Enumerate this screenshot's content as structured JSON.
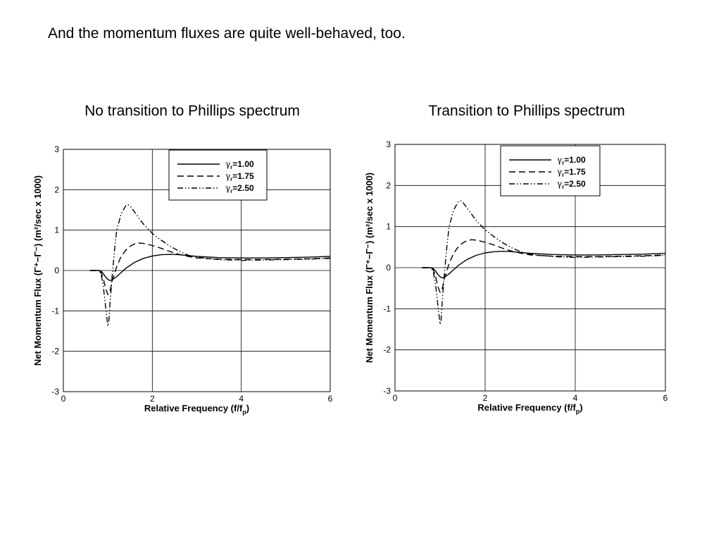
{
  "slide": {
    "heading": "And the momentum fluxes are quite well-behaved, too."
  },
  "chart_data": [
    {
      "type": "line",
      "title": "No transition to Phillips spectrum",
      "xlabel": "Relative Frequency (f/f",
      "xlabel_sub": "p",
      "xlabel_end": ")",
      "ylabel": "Net Momentum Flux  (Γ⁺−Γ⁻)  (m²/sec  x 1000)",
      "xlim": [
        0,
        6
      ],
      "ylim": [
        -3,
        3
      ],
      "xticks": [
        0,
        2,
        4,
        6
      ],
      "yticks": [
        -3,
        -2,
        -1,
        0,
        1,
        2,
        3
      ],
      "grid": true,
      "legend_position": "top-center",
      "series": [
        {
          "name": "γr=1.00",
          "legend_text": "=1.00",
          "dash": "solid",
          "points": [
            [
              0.6,
              0
            ],
            [
              0.8,
              0
            ],
            [
              0.85,
              -0.02
            ],
            [
              0.9,
              -0.08
            ],
            [
              0.95,
              -0.16
            ],
            [
              1.0,
              -0.22
            ],
            [
              1.05,
              -0.25
            ],
            [
              1.1,
              -0.23
            ],
            [
              1.2,
              -0.15
            ],
            [
              1.3,
              -0.05
            ],
            [
              1.4,
              0.05
            ],
            [
              1.6,
              0.2
            ],
            [
              1.8,
              0.3
            ],
            [
              2.0,
              0.36
            ],
            [
              2.2,
              0.39
            ],
            [
              2.4,
              0.4
            ],
            [
              2.6,
              0.39
            ],
            [
              2.8,
              0.37
            ],
            [
              3.0,
              0.35
            ],
            [
              3.5,
              0.32
            ],
            [
              4.0,
              0.31
            ],
            [
              4.5,
              0.31
            ],
            [
              5.0,
              0.32
            ],
            [
              5.5,
              0.33
            ],
            [
              6.0,
              0.35
            ]
          ]
        },
        {
          "name": "γr=1.75",
          "legend_text": "=1.75",
          "dash": "dashed",
          "points": [
            [
              0.6,
              0
            ],
            [
              0.8,
              0
            ],
            [
              0.85,
              -0.05
            ],
            [
              0.9,
              -0.2
            ],
            [
              0.95,
              -0.45
            ],
            [
              1.0,
              -0.6
            ],
            [
              1.05,
              -0.5
            ],
            [
              1.1,
              -0.25
            ],
            [
              1.2,
              0.1
            ],
            [
              1.3,
              0.35
            ],
            [
              1.4,
              0.5
            ],
            [
              1.5,
              0.6
            ],
            [
              1.6,
              0.66
            ],
            [
              1.7,
              0.68
            ],
            [
              1.8,
              0.67
            ],
            [
              2.0,
              0.62
            ],
            [
              2.2,
              0.55
            ],
            [
              2.4,
              0.47
            ],
            [
              2.6,
              0.4
            ],
            [
              2.8,
              0.35
            ],
            [
              3.0,
              0.31
            ],
            [
              3.5,
              0.28
            ],
            [
              4.0,
              0.27
            ],
            [
              4.5,
              0.27
            ],
            [
              5.0,
              0.28
            ],
            [
              5.5,
              0.29
            ],
            [
              6.0,
              0.31
            ]
          ]
        },
        {
          "name": "γr=2.50",
          "legend_text": "=2.50",
          "dash": "dashdotdot",
          "points": [
            [
              0.6,
              0
            ],
            [
              0.8,
              0
            ],
            [
              0.85,
              -0.1
            ],
            [
              0.9,
              -0.4
            ],
            [
              0.95,
              -0.9
            ],
            [
              1.0,
              -1.38
            ],
            [
              1.02,
              -1.3
            ],
            [
              1.05,
              -0.8
            ],
            [
              1.1,
              -0.1
            ],
            [
              1.15,
              0.5
            ],
            [
              1.2,
              1.0
            ],
            [
              1.3,
              1.4
            ],
            [
              1.4,
              1.6
            ],
            [
              1.45,
              1.63
            ],
            [
              1.5,
              1.6
            ],
            [
              1.6,
              1.45
            ],
            [
              1.8,
              1.15
            ],
            [
              2.0,
              0.92
            ],
            [
              2.2,
              0.75
            ],
            [
              2.4,
              0.6
            ],
            [
              2.6,
              0.48
            ],
            [
              2.8,
              0.38
            ],
            [
              3.0,
              0.33
            ],
            [
              3.5,
              0.27
            ],
            [
              4.0,
              0.25
            ],
            [
              4.5,
              0.26
            ],
            [
              5.0,
              0.27
            ],
            [
              5.5,
              0.28
            ],
            [
              6.0,
              0.3
            ]
          ]
        }
      ]
    },
    {
      "type": "line",
      "title": "Transition to Phillips spectrum",
      "xlabel": "Relative Frequency (f/f",
      "xlabel_sub": "p",
      "xlabel_end": ")",
      "ylabel": "Net Momentum Flux  (Γ⁺−Γ⁻)  (m²/sec  x 1000)",
      "xlim": [
        0,
        6
      ],
      "ylim": [
        -3,
        3
      ],
      "xticks": [
        0,
        2,
        4,
        6
      ],
      "yticks": [
        -3,
        -2,
        -1,
        0,
        1,
        2,
        3
      ],
      "grid": true,
      "legend_position": "top-center",
      "series": [
        {
          "name": "γr=1.00",
          "legend_text": "=1.00",
          "dash": "solid",
          "points": [
            [
              0.6,
              0
            ],
            [
              0.8,
              0
            ],
            [
              0.85,
              -0.02
            ],
            [
              0.9,
              -0.08
            ],
            [
              0.95,
              -0.16
            ],
            [
              1.0,
              -0.22
            ],
            [
              1.05,
              -0.25
            ],
            [
              1.1,
              -0.23
            ],
            [
              1.2,
              -0.15
            ],
            [
              1.3,
              -0.05
            ],
            [
              1.4,
              0.05
            ],
            [
              1.6,
              0.2
            ],
            [
              1.8,
              0.3
            ],
            [
              2.0,
              0.36
            ],
            [
              2.2,
              0.39
            ],
            [
              2.4,
              0.4
            ],
            [
              2.6,
              0.39
            ],
            [
              2.8,
              0.37
            ],
            [
              3.0,
              0.35
            ],
            [
              3.5,
              0.32
            ],
            [
              4.0,
              0.31
            ],
            [
              4.5,
              0.31
            ],
            [
              5.0,
              0.32
            ],
            [
              5.5,
              0.33
            ],
            [
              6.0,
              0.35
            ]
          ]
        },
        {
          "name": "γr=1.75",
          "legend_text": "=1.75",
          "dash": "dashed",
          "points": [
            [
              0.6,
              0
            ],
            [
              0.8,
              0
            ],
            [
              0.85,
              -0.05
            ],
            [
              0.9,
              -0.2
            ],
            [
              0.95,
              -0.45
            ],
            [
              1.0,
              -0.6
            ],
            [
              1.05,
              -0.5
            ],
            [
              1.1,
              -0.25
            ],
            [
              1.2,
              0.1
            ],
            [
              1.3,
              0.35
            ],
            [
              1.4,
              0.5
            ],
            [
              1.5,
              0.6
            ],
            [
              1.6,
              0.66
            ],
            [
              1.7,
              0.68
            ],
            [
              1.8,
              0.67
            ],
            [
              2.0,
              0.62
            ],
            [
              2.2,
              0.55
            ],
            [
              2.4,
              0.47
            ],
            [
              2.6,
              0.4
            ],
            [
              2.8,
              0.35
            ],
            [
              3.0,
              0.31
            ],
            [
              3.5,
              0.28
            ],
            [
              4.0,
              0.27
            ],
            [
              4.5,
              0.27
            ],
            [
              5.0,
              0.28
            ],
            [
              5.5,
              0.29
            ],
            [
              6.0,
              0.31
            ]
          ]
        },
        {
          "name": "γr=2.50",
          "legend_text": "=2.50",
          "dash": "dashdotdot",
          "points": [
            [
              0.6,
              0
            ],
            [
              0.8,
              0
            ],
            [
              0.85,
              -0.1
            ],
            [
              0.9,
              -0.4
            ],
            [
              0.95,
              -0.9
            ],
            [
              1.0,
              -1.38
            ],
            [
              1.02,
              -1.3
            ],
            [
              1.05,
              -0.8
            ],
            [
              1.1,
              -0.1
            ],
            [
              1.15,
              0.5
            ],
            [
              1.2,
              1.0
            ],
            [
              1.3,
              1.4
            ],
            [
              1.4,
              1.6
            ],
            [
              1.45,
              1.63
            ],
            [
              1.5,
              1.6
            ],
            [
              1.6,
              1.45
            ],
            [
              1.8,
              1.15
            ],
            [
              2.0,
              0.92
            ],
            [
              2.2,
              0.75
            ],
            [
              2.4,
              0.6
            ],
            [
              2.6,
              0.48
            ],
            [
              2.8,
              0.38
            ],
            [
              3.0,
              0.33
            ],
            [
              3.5,
              0.27
            ],
            [
              4.0,
              0.25
            ],
            [
              4.5,
              0.26
            ],
            [
              5.0,
              0.27
            ],
            [
              5.5,
              0.28
            ],
            [
              6.0,
              0.3
            ]
          ]
        }
      ]
    }
  ]
}
